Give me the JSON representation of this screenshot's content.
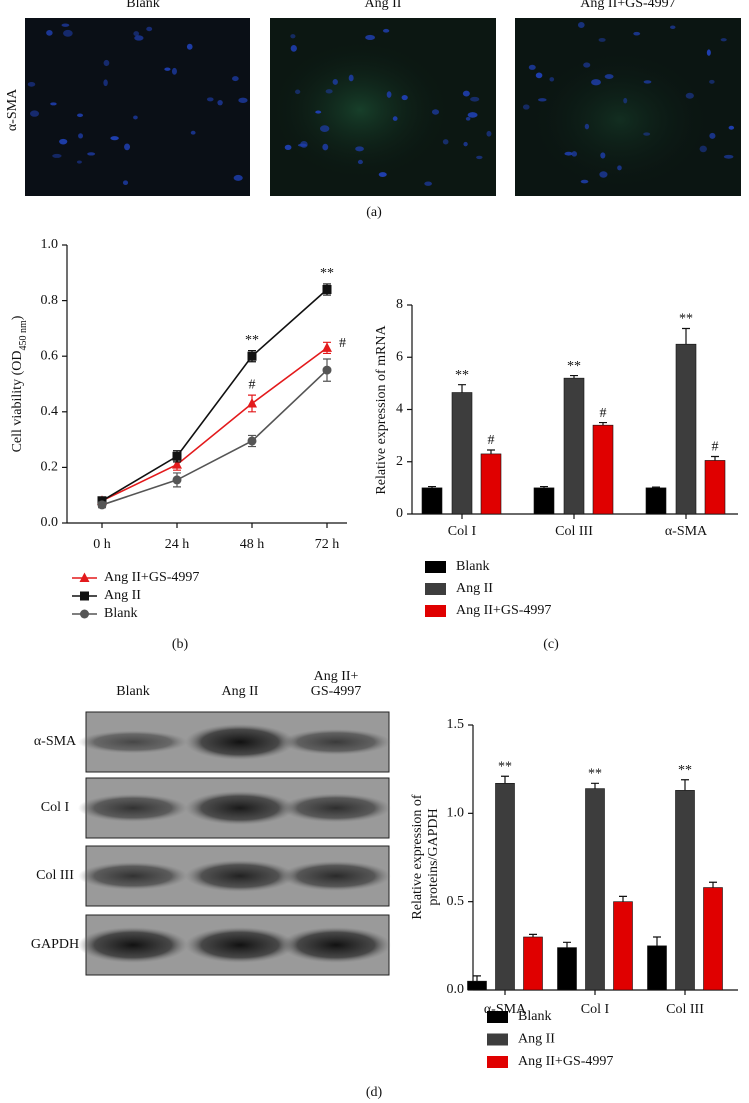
{
  "panel_a": {
    "columns": [
      "Blank",
      "Ang II",
      "Ang II+GS-4997"
    ],
    "row_label": "α-SMA",
    "caption": "(a)"
  },
  "blot": {
    "columns": [
      [
        "Blank"
      ],
      [
        "Ang II"
      ],
      [
        "Ang II+",
        "GS-4997"
      ]
    ],
    "rows": [
      "α-SMA",
      "Col I",
      "Col III",
      "GAPDH"
    ]
  },
  "caption_d": "(d)",
  "chart_data": [
    {
      "type": "line",
      "caption": "(b)",
      "ylabel": "Cell viability (OD",
      "ylabel_sub": "450 nm",
      "ylabel_end": ")",
      "categories": [
        "0 h",
        "24 h",
        "48 h",
        "72 h"
      ],
      "ylim": [
        0,
        1
      ],
      "yticks": [
        {
          "value": 0,
          "label": "0.0"
        },
        0.2,
        0.4,
        0.6,
        0.8,
        {
          "value": 1,
          "label": "1.0"
        }
      ],
      "series": [
        {
          "name": "Ang II+GS-4997",
          "color": "#e31a1c",
          "marker": "triangle",
          "values": [
            0.08,
            0.21,
            0.43,
            0.63
          ],
          "errors": [
            0.01,
            0.02,
            0.03,
            0.02
          ]
        },
        {
          "name": "Ang II",
          "color": "#111111",
          "marker": "square",
          "values": [
            0.08,
            0.24,
            0.6,
            0.84
          ],
          "errors": [
            0.01,
            0.02,
            0.02,
            0.02
          ]
        },
        {
          "name": "Blank",
          "color": "#555555",
          "marker": "circle",
          "values": [
            0.065,
            0.155,
            0.295,
            0.55
          ],
          "errors": [
            0.01,
            0.025,
            0.02,
            0.04
          ]
        }
      ],
      "annotations": [
        {
          "text": "**",
          "series": "Ang II",
          "at": "48 h"
        },
        {
          "text": "**",
          "series": "Ang II",
          "at": "72 h"
        },
        {
          "text": "#",
          "series": "Ang II+GS-4997",
          "at": "48 h"
        },
        {
          "text": "#",
          "series": "Ang II+GS-4997",
          "at": "72 h"
        }
      ]
    },
    {
      "type": "bar",
      "caption": "(c)",
      "ylabel": [
        "Relative expression of mRNA"
      ],
      "categories": [
        "Col I",
        "Col III",
        "α-SMA"
      ],
      "ylim": [
        0,
        8
      ],
      "yticks": [
        0,
        2,
        4,
        6,
        8
      ],
      "series": [
        {
          "name": "Blank",
          "color": "#000000",
          "values": [
            1.0,
            1.0,
            1.0
          ],
          "errors": [
            0.05,
            0.05,
            0.03
          ]
        },
        {
          "name": "Ang II",
          "color": "#3d3d3d",
          "values": [
            4.65,
            5.2,
            6.5
          ],
          "errors": [
            0.3,
            0.1,
            0.6
          ],
          "annotation": "**"
        },
        {
          "name": "Ang II+GS-4997",
          "color": "#e00000",
          "values": [
            2.3,
            3.4,
            2.05
          ],
          "errors": [
            0.15,
            0.1,
            0.15
          ],
          "annotation": "#"
        }
      ]
    },
    {
      "type": "bar",
      "ylabel": [
        "Relative expression of",
        "proteins/GAPDH"
      ],
      "categories": [
        "α-SMA",
        "Col I",
        "Col III"
      ],
      "ylim": [
        0,
        1.5
      ],
      "yticks": [
        {
          "value": 0,
          "label": "0.0"
        },
        0.5,
        {
          "value": 1,
          "label": "1.0"
        },
        {
          "value": 1.5,
          "label": "1.5"
        }
      ],
      "series": [
        {
          "name": "Blank",
          "color": "#000000",
          "values": [
            0.05,
            0.24,
            0.25
          ],
          "errors": [
            0.03,
            0.03,
            0.05
          ]
        },
        {
          "name": "Ang II",
          "color": "#3d3d3d",
          "values": [
            1.17,
            1.14,
            1.13
          ],
          "errors": [
            0.04,
            0.03,
            0.06
          ],
          "annotation": "**"
        },
        {
          "name": "Ang II+GS-4997",
          "color": "#e00000",
          "values": [
            0.3,
            0.5,
            0.58
          ],
          "errors": [
            0.015,
            0.03,
            0.03
          ]
        }
      ]
    }
  ]
}
